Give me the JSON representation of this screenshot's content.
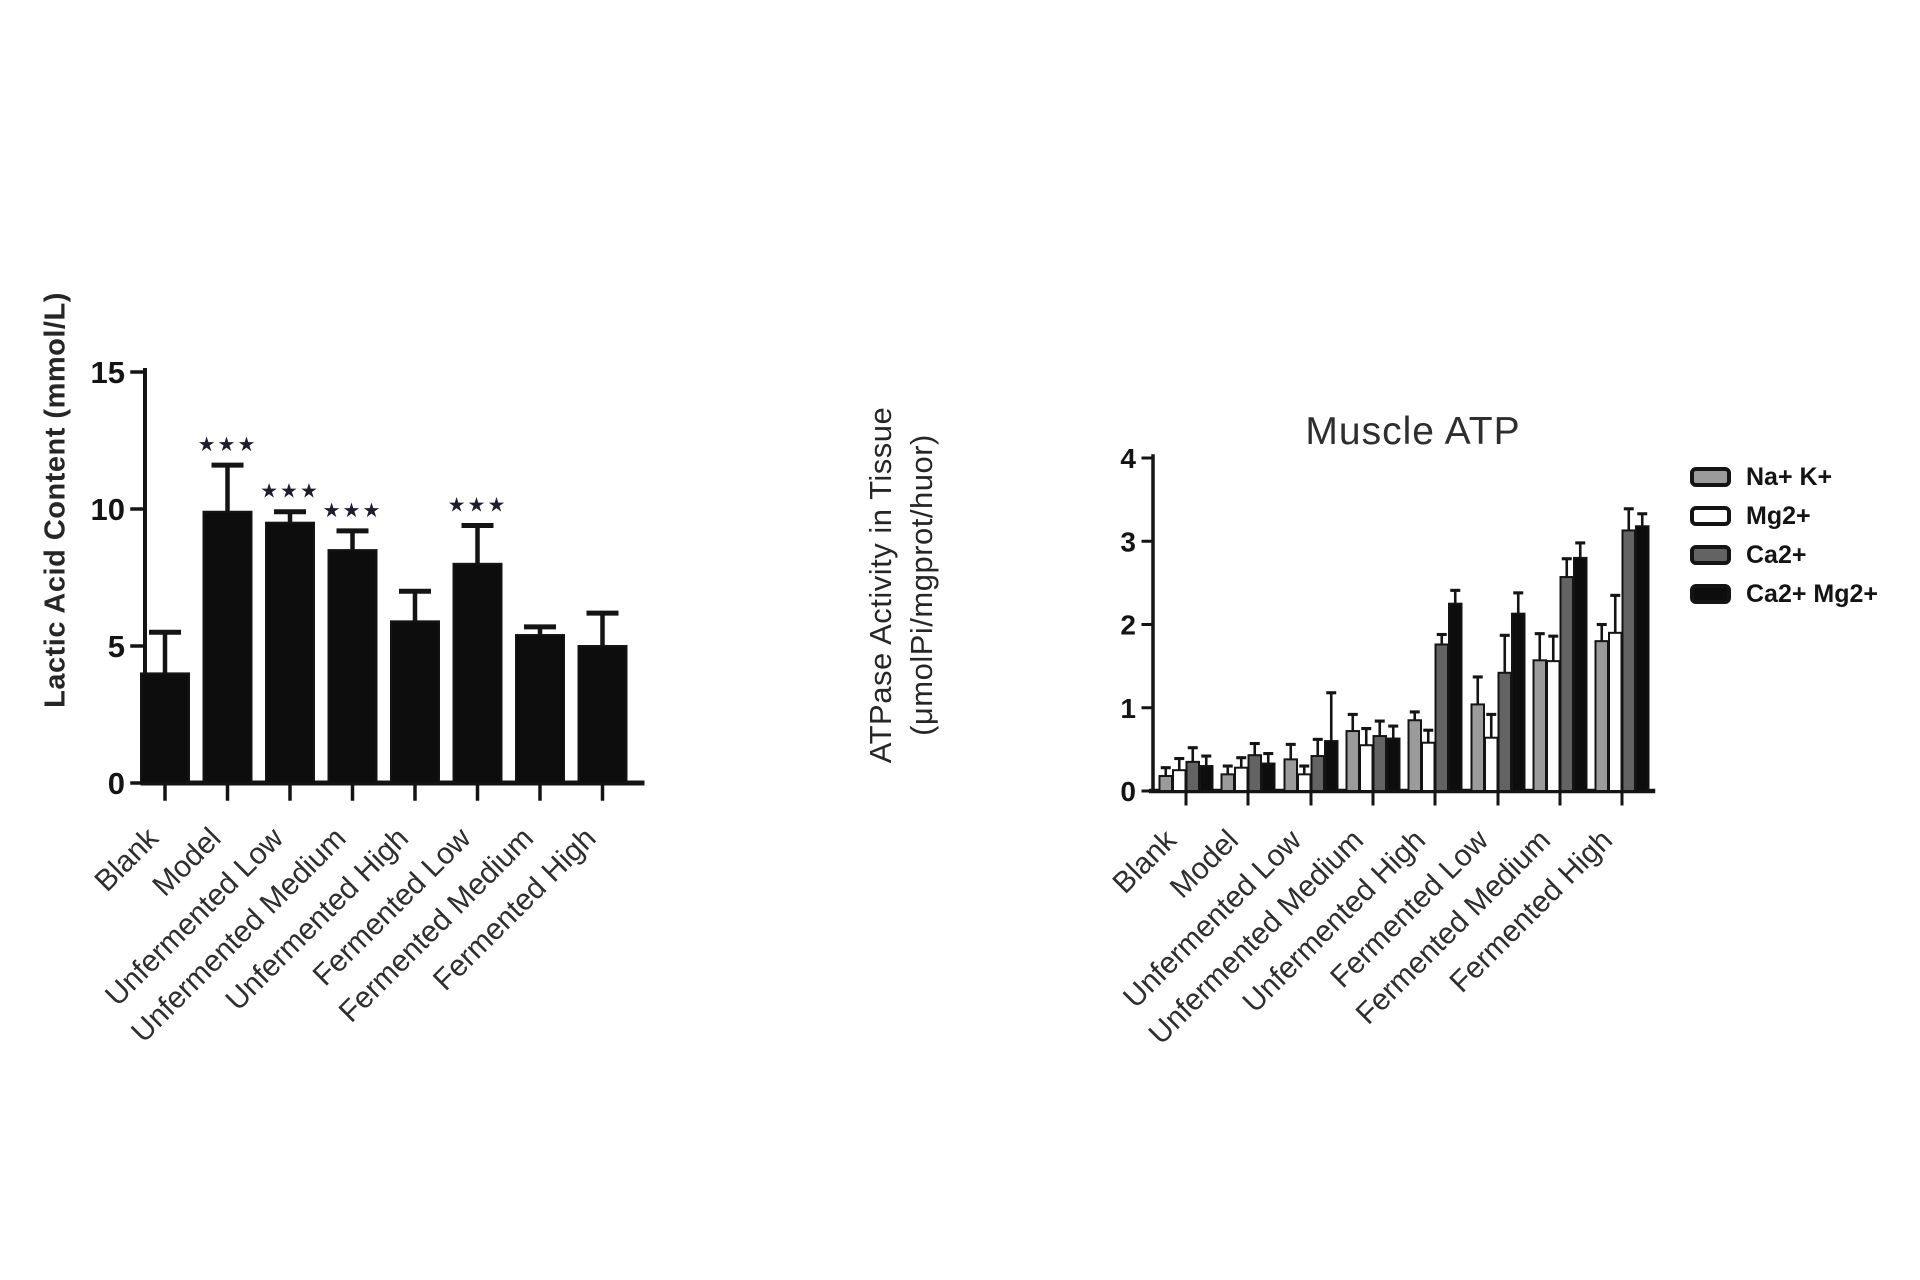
{
  "chart_data": [
    {
      "type": "bar",
      "title": "",
      "ylabel": "Lactic Acid Content (mmol/L)",
      "xlabel": "",
      "ylim": [
        0,
        15
      ],
      "yticks": [
        0,
        5,
        10,
        15
      ],
      "grid": false,
      "legend_position": "none",
      "bar_color": "#0d0d0d",
      "categories": [
        "Blank",
        "Model",
        "Unfermented Low",
        "Unfermented Medium",
        "Unfermented High",
        "Fermented Low",
        "Fermented Medium",
        "Fermented High"
      ],
      "values": [
        4.0,
        9.9,
        9.5,
        8.5,
        5.9,
        8.0,
        5.4,
        5.0
      ],
      "errors_plus": [
        1.5,
        1.7,
        0.4,
        0.7,
        1.1,
        1.4,
        0.3,
        1.2
      ],
      "significance": [
        "",
        "★★★",
        "★★★",
        "★★★",
        "",
        "★★★",
        "",
        ""
      ]
    },
    {
      "type": "grouped_bar",
      "title": "Muscle ATP",
      "ylabel_lines": [
        "ATPase Activity in Tissue",
        "(μmolPi/mgprot/huor)"
      ],
      "xlabel": "",
      "ylim": [
        0,
        4
      ],
      "yticks": [
        0,
        1,
        2,
        3,
        4
      ],
      "grid": false,
      "legend_position": "right",
      "categories": [
        "Blank",
        "Model",
        "Unfermented Low",
        "Unfermented Medium",
        "Unfermented High",
        "Fermented Low",
        "Fermented Medium",
        "Fermented High"
      ],
      "series": [
        {
          "name": "Na+ K+",
          "color": "#9b9b9b",
          "values": [
            0.18,
            0.2,
            0.38,
            0.72,
            0.85,
            1.04,
            1.57,
            1.8
          ],
          "errors_plus": [
            0.1,
            0.1,
            0.18,
            0.2,
            0.1,
            0.33,
            0.32,
            0.2
          ]
        },
        {
          "name": "Mg2+",
          "color": "#ffffff",
          "values": [
            0.25,
            0.28,
            0.2,
            0.55,
            0.58,
            0.64,
            1.56,
            1.9
          ],
          "errors_plus": [
            0.14,
            0.12,
            0.1,
            0.2,
            0.15,
            0.28,
            0.3,
            0.45
          ]
        },
        {
          "name": "Ca2+",
          "color": "#636363",
          "values": [
            0.35,
            0.43,
            0.42,
            0.66,
            1.76,
            1.42,
            2.57,
            3.13
          ],
          "errors_plus": [
            0.17,
            0.14,
            0.2,
            0.18,
            0.12,
            0.45,
            0.22,
            0.26
          ]
        },
        {
          "name": "Ca2+ Mg2+",
          "color": "#0d0d0d",
          "values": [
            0.3,
            0.33,
            0.6,
            0.63,
            2.25,
            2.13,
            2.8,
            3.18
          ],
          "errors_plus": [
            0.12,
            0.12,
            0.58,
            0.15,
            0.16,
            0.25,
            0.18,
            0.15
          ]
        }
      ]
    }
  ]
}
